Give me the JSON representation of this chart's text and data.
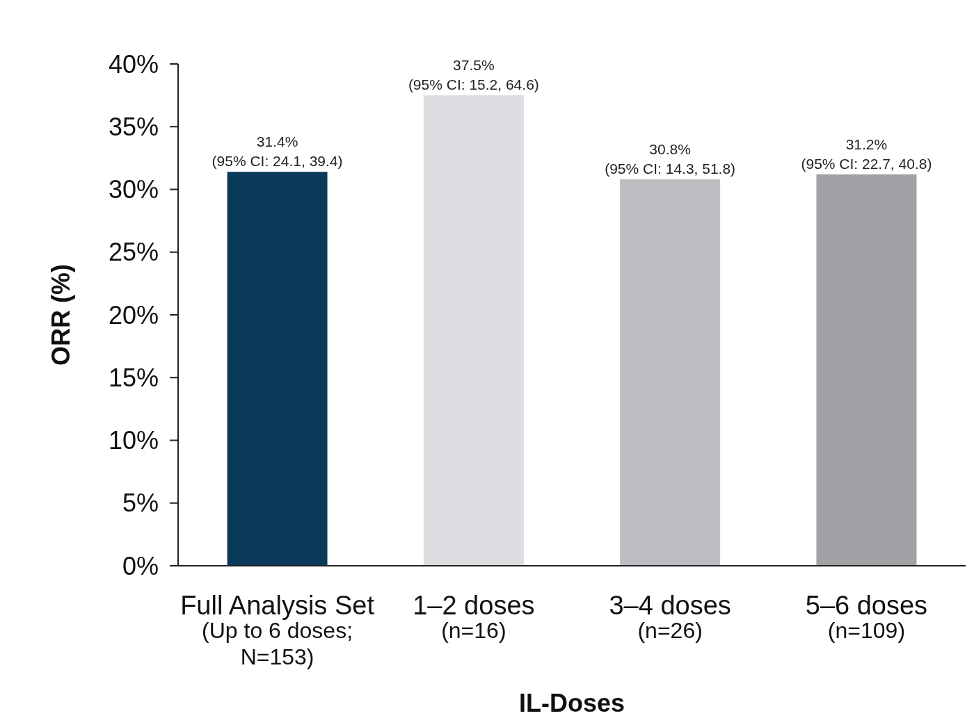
{
  "chart_data": {
    "type": "bar",
    "categories": [
      "Full Analysis Set\n(Up to 6 doses;\nN=153)",
      "1–2 doses\n(n=16)",
      "3–4 doses\n(n=26)",
      "5–6 doses\n(n=109)"
    ],
    "values": [
      31.4,
      37.5,
      30.8,
      31.2
    ],
    "colors": [
      "#0a3a5a",
      "#dcdde0",
      "#bcbdc1",
      "#a0a1a4"
    ],
    "value_labels": [
      "31.4%\n(95% CI: 24.1, 39.4)",
      "37.5%\n(95% CI: 15.2, 64.6)",
      "30.8%\n(95% CI: 14.3, 51.8)",
      "31.2%\n(95% CI: 22.7, 40.8)"
    ],
    "ylabel": "ORR (%)",
    "xlabel": "IL-Doses",
    "ylim": [
      0,
      40
    ],
    "yticks": [
      {
        "value": 0,
        "label": "0%"
      },
      {
        "value": 5,
        "label": "5%"
      },
      {
        "value": 10,
        "label": "10%"
      },
      {
        "value": 15,
        "label": "15%"
      },
      {
        "value": 20,
        "label": "20%"
      },
      {
        "value": 25,
        "label": "25%"
      },
      {
        "value": 30,
        "label": "30%"
      },
      {
        "value": 35,
        "label": "35%"
      },
      {
        "value": 40,
        "label": "40%"
      }
    ],
    "orientation": "vertical"
  }
}
